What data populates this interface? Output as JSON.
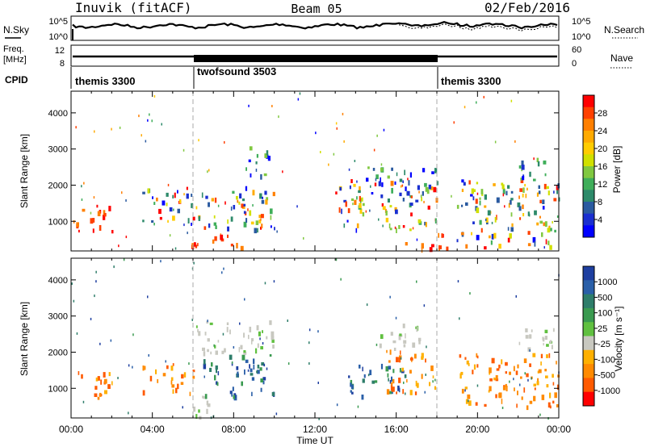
{
  "header": {
    "station": "Inuvik (fitACF)",
    "beam": "Beam 05",
    "date": "02/Feb/2016"
  },
  "noise_panel": {
    "left_label": "N.Sky",
    "right_label": "N.Search",
    "left_ticks": [
      "10^5",
      "10^0"
    ],
    "right_ticks": [
      "10^5",
      "10^0"
    ]
  },
  "freq_panel": {
    "left_label_line1": "Freq.",
    "left_label_line2": "[MHz]",
    "left_ticks": [
      "12",
      "8"
    ],
    "right_label": "Nave",
    "right_ticks": [
      "60",
      "0"
    ]
  },
  "cpid": {
    "label": "CPID",
    "segments": [
      {
        "name": "themis 3300",
        "start_hour": 0,
        "end_hour": 6
      },
      {
        "name": "twofsound 3503",
        "start_hour": 6,
        "end_hour": 18
      },
      {
        "name": "themis 3300",
        "start_hour": 18,
        "end_hour": 24
      }
    ]
  },
  "x_axis": {
    "label": "Time UT",
    "ticks": [
      "00:00",
      "04:00",
      "08:00",
      "12:00",
      "16:00",
      "20:00",
      "00:00"
    ]
  },
  "power_panel": {
    "ylabel": "Slant Range [km]",
    "yticks": [
      "1000",
      "2000",
      "3000",
      "4000"
    ],
    "colorbar_label": "Power [dB]",
    "colorbar_ticks": [
      "28",
      "24",
      "20",
      "16",
      "12",
      "8",
      "4"
    ],
    "colors": [
      "#ff0000",
      "#ff4000",
      "#ff7f00",
      "#ffaa00",
      "#ffcc00",
      "#d0e000",
      "#80c840",
      "#3fae5a",
      "#2d8a6a",
      "#2a5aa0",
      "#1a2fd0",
      "#0000ff"
    ]
  },
  "velocity_panel": {
    "ylabel": "Slant Range [km]",
    "yticks": [
      "1000",
      "2000",
      "3000",
      "4000"
    ],
    "colorbar_label": "Velocity [m s⁻¹]",
    "colorbar_ticks": [
      "1000",
      "500",
      "100",
      "25",
      "-25",
      "-100",
      "-500",
      "-1000"
    ],
    "colors": [
      "#1e3fa0",
      "#2a5fa8",
      "#2e7d6a",
      "#3a9a50",
      "#60c040",
      "#c8c8c0",
      "#ffb000",
      "#ff8a00",
      "#ff5a00",
      "#ff0000"
    ]
  },
  "chart_data": {
    "type": "heatmap",
    "x_range_hours": [
      0,
      24
    ],
    "y_range_km": [
      180,
      4600
    ],
    "dashed_markers_hours": [
      6,
      18
    ],
    "power_regions": [
      {
        "t0": 0.1,
        "t1": 2.0,
        "r0": 700,
        "r1": 1500,
        "level": "high"
      },
      {
        "t0": 3.5,
        "t1": 6.0,
        "r0": 900,
        "r1": 2000,
        "level": "mid"
      },
      {
        "t0": 5.9,
        "t1": 10.0,
        "r0": 800,
        "r1": 2000,
        "level": "mixed"
      },
      {
        "t0": 5.9,
        "t1": 8.5,
        "r0": 200,
        "r1": 700,
        "level": "high"
      },
      {
        "t0": 8.5,
        "t1": 10.0,
        "r0": 2300,
        "r1": 3100,
        "level": "low"
      },
      {
        "t0": 13.0,
        "t1": 18.0,
        "r0": 800,
        "r1": 2200,
        "level": "mixed"
      },
      {
        "t0": 14.5,
        "t1": 18.0,
        "r0": 2000,
        "r1": 2600,
        "level": "low"
      },
      {
        "t0": 16.3,
        "t1": 18.5,
        "r0": 250,
        "r1": 700,
        "level": "high"
      },
      {
        "t0": 18.8,
        "t1": 24.0,
        "r0": 300,
        "r1": 2200,
        "level": "mixed"
      },
      {
        "t0": 22.0,
        "t1": 24.0,
        "r0": 2200,
        "r1": 2800,
        "level": "low"
      }
    ],
    "velocity_regions": [
      {
        "t0": 0.1,
        "t1": 2.0,
        "r0": 700,
        "r1": 1500,
        "class": "negative"
      },
      {
        "t0": 3.5,
        "t1": 6.0,
        "r0": 900,
        "r1": 1700,
        "class": "negative"
      },
      {
        "t0": 5.9,
        "t1": 7.2,
        "r0": 200,
        "r1": 800,
        "class": "near-zero"
      },
      {
        "t0": 6.5,
        "t1": 10.0,
        "r0": 800,
        "r1": 2000,
        "class": "positive"
      },
      {
        "t0": 6.0,
        "t1": 10.0,
        "r0": 2000,
        "r1": 2900,
        "class": "near-zero"
      },
      {
        "t0": 13.5,
        "t1": 16.5,
        "r0": 800,
        "r1": 1700,
        "class": "positive"
      },
      {
        "t0": 15.5,
        "t1": 18.0,
        "r0": 900,
        "r1": 2100,
        "class": "negative"
      },
      {
        "t0": 15.0,
        "t1": 17.5,
        "r0": 2100,
        "r1": 2800,
        "class": "near-zero"
      },
      {
        "t0": 19.0,
        "t1": 24.0,
        "r0": 500,
        "r1": 2000,
        "class": "negative"
      },
      {
        "t0": 22.0,
        "t1": 24.0,
        "r0": 2000,
        "r1": 2700,
        "class": "near-zero"
      }
    ]
  }
}
